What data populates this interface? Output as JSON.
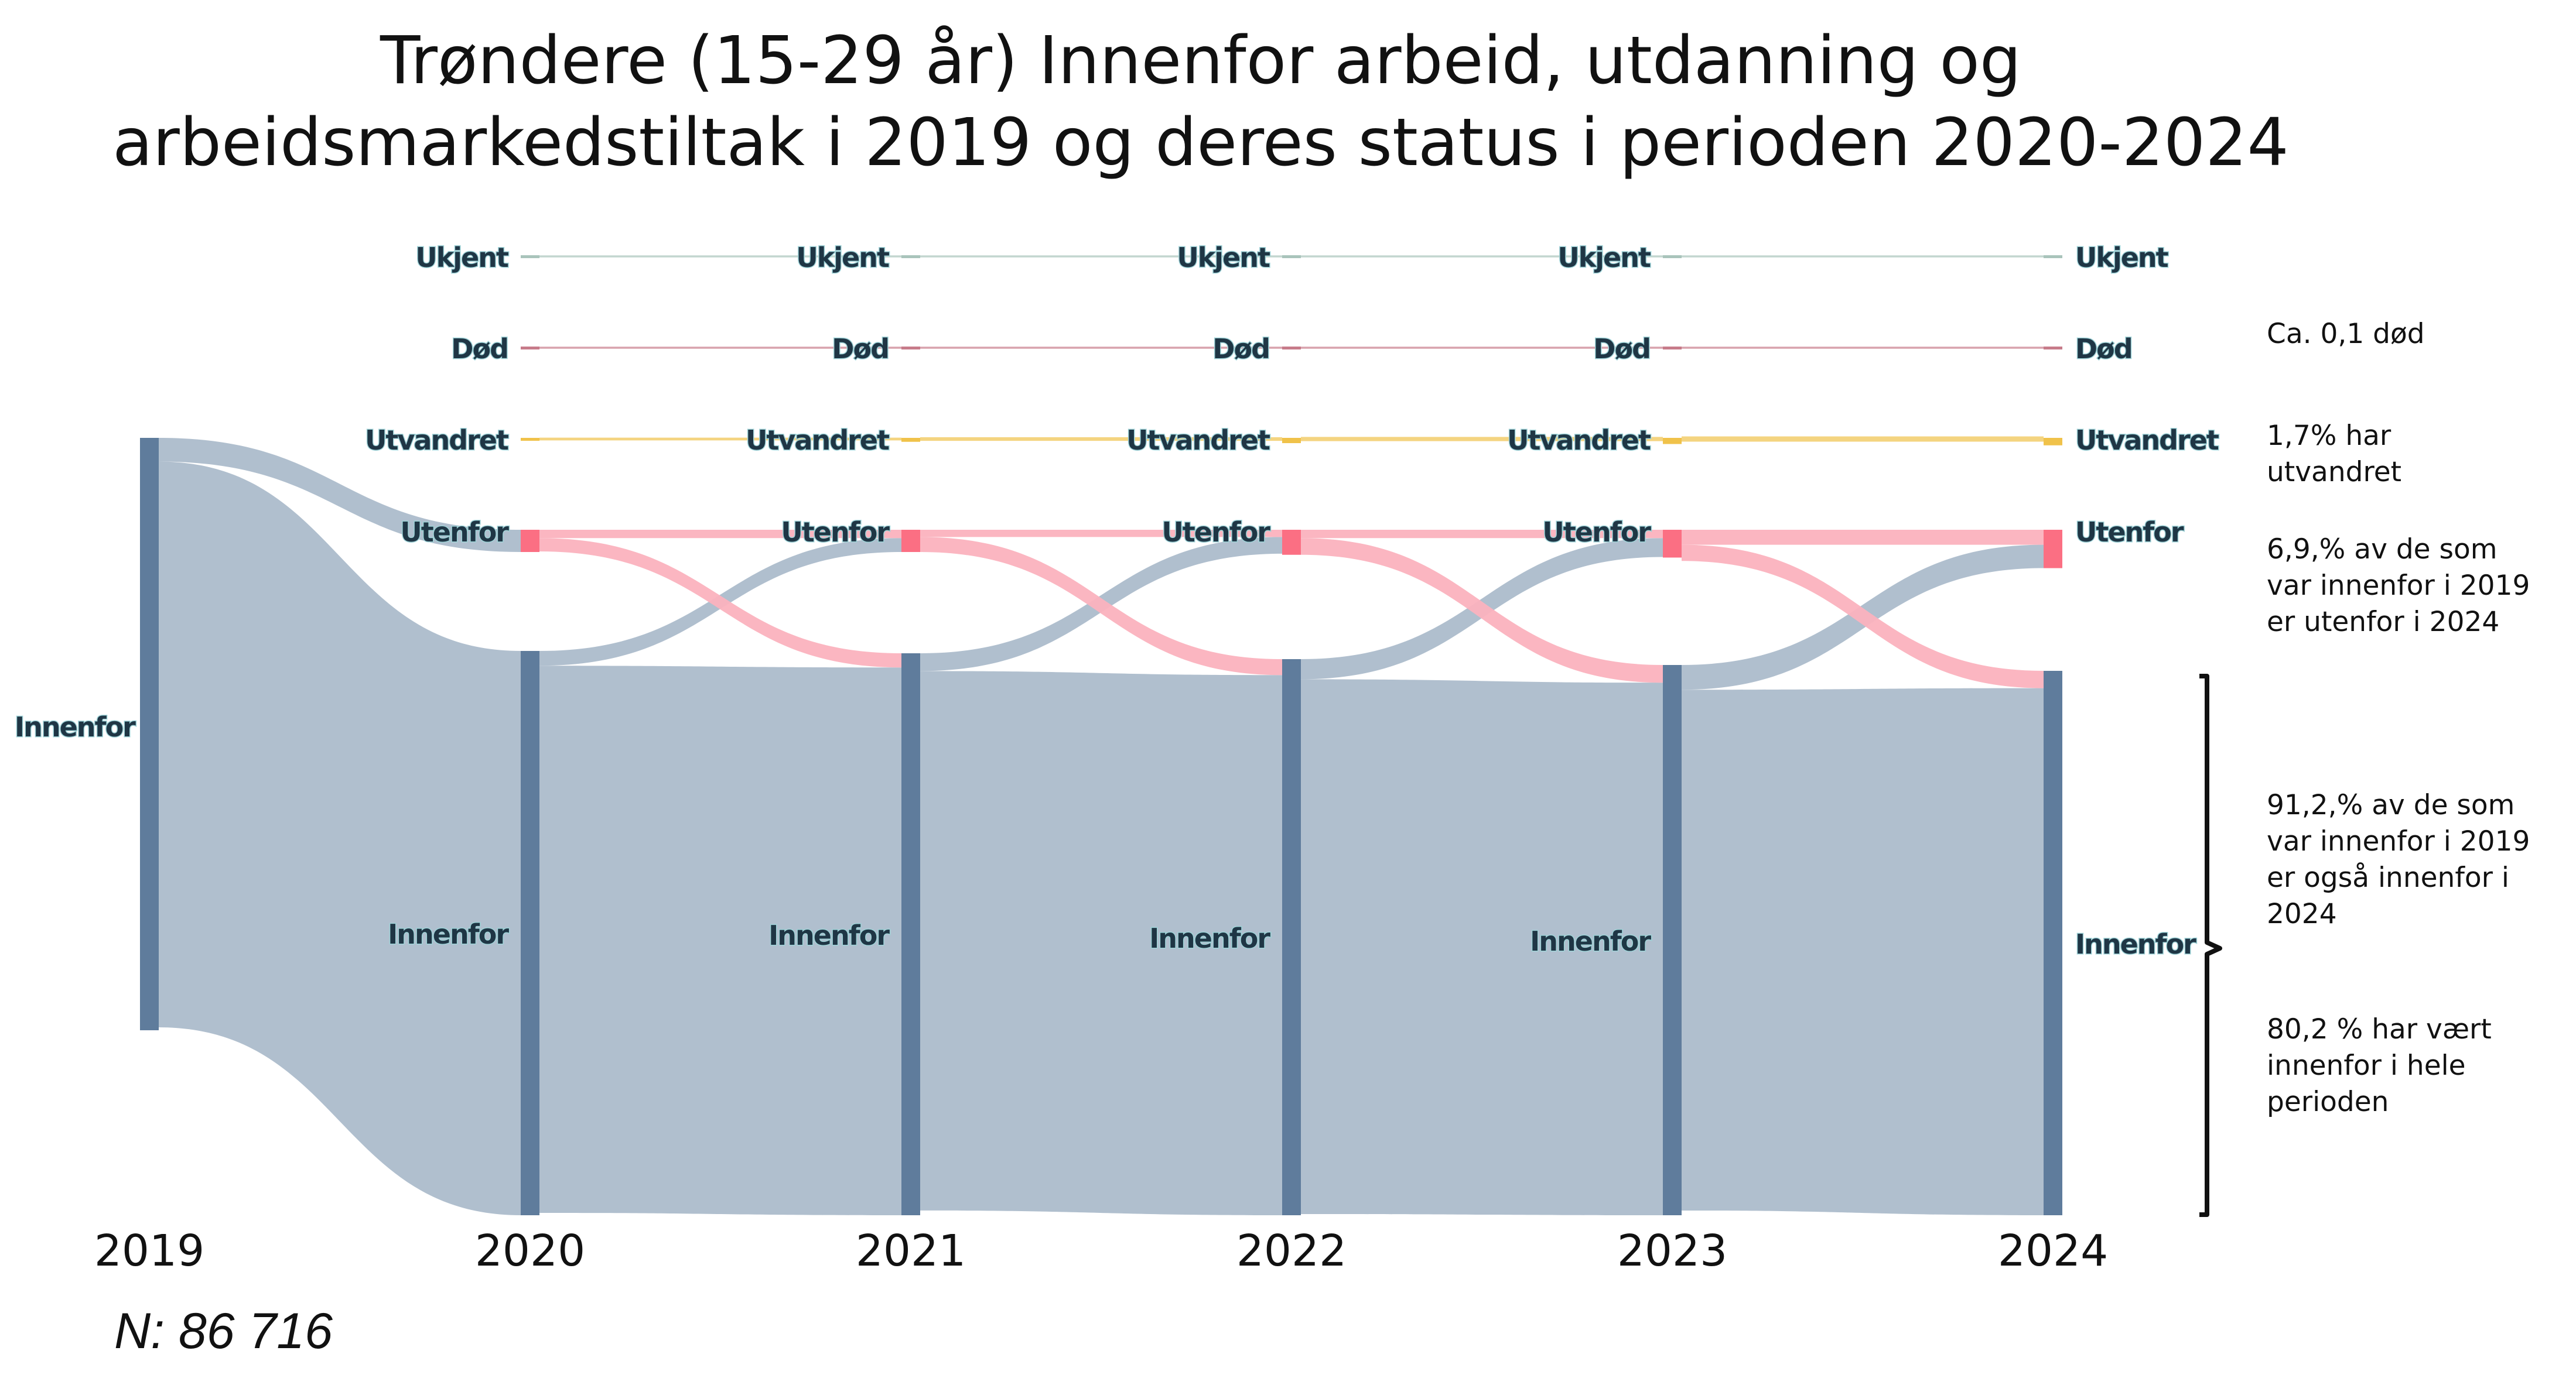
{
  "title_line1": "Trøndere (15-29 år) Innenfor arbeid, utdanning og",
  "title_line2": "arbeidsmarkedstiltak i 2019 og deres status i perioden 2020-2024",
  "footnote": "N: 86 716",
  "annotations": {
    "dod": "Ca. 0,1 død",
    "utvandret_l1": "1,7% har",
    "utvandret_l2": "utvandret",
    "utenfor_l1": "6,9,% av de som",
    "utenfor_l2": "var innenfor i 2019",
    "utenfor_l3": "er  utenfor i 2024",
    "innenfor_l1": "91,2,% av de som",
    "innenfor_l2": "var innenfor i 2019",
    "innenfor_l3": "er  også innenfor i",
    "innenfor_l4": "2024",
    "hele_l1": "80,2 % har vært",
    "hele_l2": "innenfor i hele",
    "hele_l3": "perioden"
  },
  "colors": {
    "innenfor": "#5f7c9c",
    "innenfor_flow": "#acbccb",
    "utenfor": "#fb6f83",
    "utenfor_flow": "#fbb2be",
    "utvandret": "#f0c24a",
    "dod": "#c77b8a",
    "ukjent": "#a9c4bb"
  },
  "chart_data": {
    "type": "sankey",
    "title": "Trøndere (15-29 år) Innenfor arbeid, utdanning og arbeidsmarkedstiltak i 2019 og deres status i perioden 2020-2024",
    "years": [
      "2019",
      "2020",
      "2021",
      "2022",
      "2023",
      "2024"
    ],
    "categories": [
      "Ukjent",
      "Død",
      "Utvandret",
      "Utenfor",
      "Innenfor"
    ],
    "n": 86716,
    "node_shares_percent": {
      "2019": {
        "Innenfor": 100.0
      },
      "2020": {
        "Ukjent": 0.0,
        "Død": 0.02,
        "Utvandret": 0.5,
        "Utenfor": 4.0,
        "Innenfor": 95.5
      },
      "2021": {
        "Ukjent": 0.0,
        "Død": 0.04,
        "Utvandret": 0.9,
        "Utenfor": 4.0,
        "Innenfor": 95.0
      },
      "2022": {
        "Ukjent": 0.2,
        "Død": 0.06,
        "Utvandret": 1.2,
        "Utenfor": 4.5,
        "Innenfor": 93.9
      },
      "2023": {
        "Ukjent": 0.2,
        "Død": 0.08,
        "Utvandret": 1.4,
        "Utenfor": 5.0,
        "Innenfor": 93.3
      },
      "2024": {
        "Ukjent": 0.1,
        "Død": 0.1,
        "Utvandret": 1.7,
        "Utenfor": 6.9,
        "Innenfor": 91.2
      }
    },
    "main_flows_percent": [
      {
        "from": "2019 Innenfor",
        "to": "2020 Innenfor",
        "value": 95.5
      },
      {
        "from": "2019 Innenfor",
        "to": "2020 Utenfor",
        "value": 4.0
      },
      {
        "from": "2020 Innenfor",
        "to": "2021 Innenfor",
        "value": 92.6
      },
      {
        "from": "2020 Innenfor",
        "to": "2021 Utenfor",
        "value": 2.5
      },
      {
        "from": "2020 Utenfor",
        "to": "2021 Innenfor",
        "value": 2.4
      },
      {
        "from": "2020 Utenfor",
        "to": "2021 Utenfor",
        "value": 1.5
      },
      {
        "from": "2021 Innenfor",
        "to": "2022 Innenfor",
        "value": 91.2
      },
      {
        "from": "2021 Innenfor",
        "to": "2022 Utenfor",
        "value": 3.0
      },
      {
        "from": "2021 Utenfor",
        "to": "2022 Innenfor",
        "value": 2.7
      },
      {
        "from": "2021 Utenfor",
        "to": "2022 Utenfor",
        "value": 1.3
      },
      {
        "from": "2022 Innenfor",
        "to": "2023 Innenfor",
        "value": 90.3
      },
      {
        "from": "2022 Innenfor",
        "to": "2023 Utenfor",
        "value": 3.4
      },
      {
        "from": "2022 Utenfor",
        "to": "2023 Innenfor",
        "value": 3.0
      },
      {
        "from": "2022 Utenfor",
        "to": "2023 Utenfor",
        "value": 1.5
      },
      {
        "from": "2023 Innenfor",
        "to": "2024 Innenfor",
        "value": 88.3
      },
      {
        "from": "2023 Innenfor",
        "to": "2024 Utenfor",
        "value": 4.2
      },
      {
        "from": "2023 Utenfor",
        "to": "2024 Innenfor",
        "value": 2.9
      },
      {
        "from": "2023 Utenfor",
        "to": "2024 Utenfor",
        "value": 2.7
      }
    ]
  }
}
